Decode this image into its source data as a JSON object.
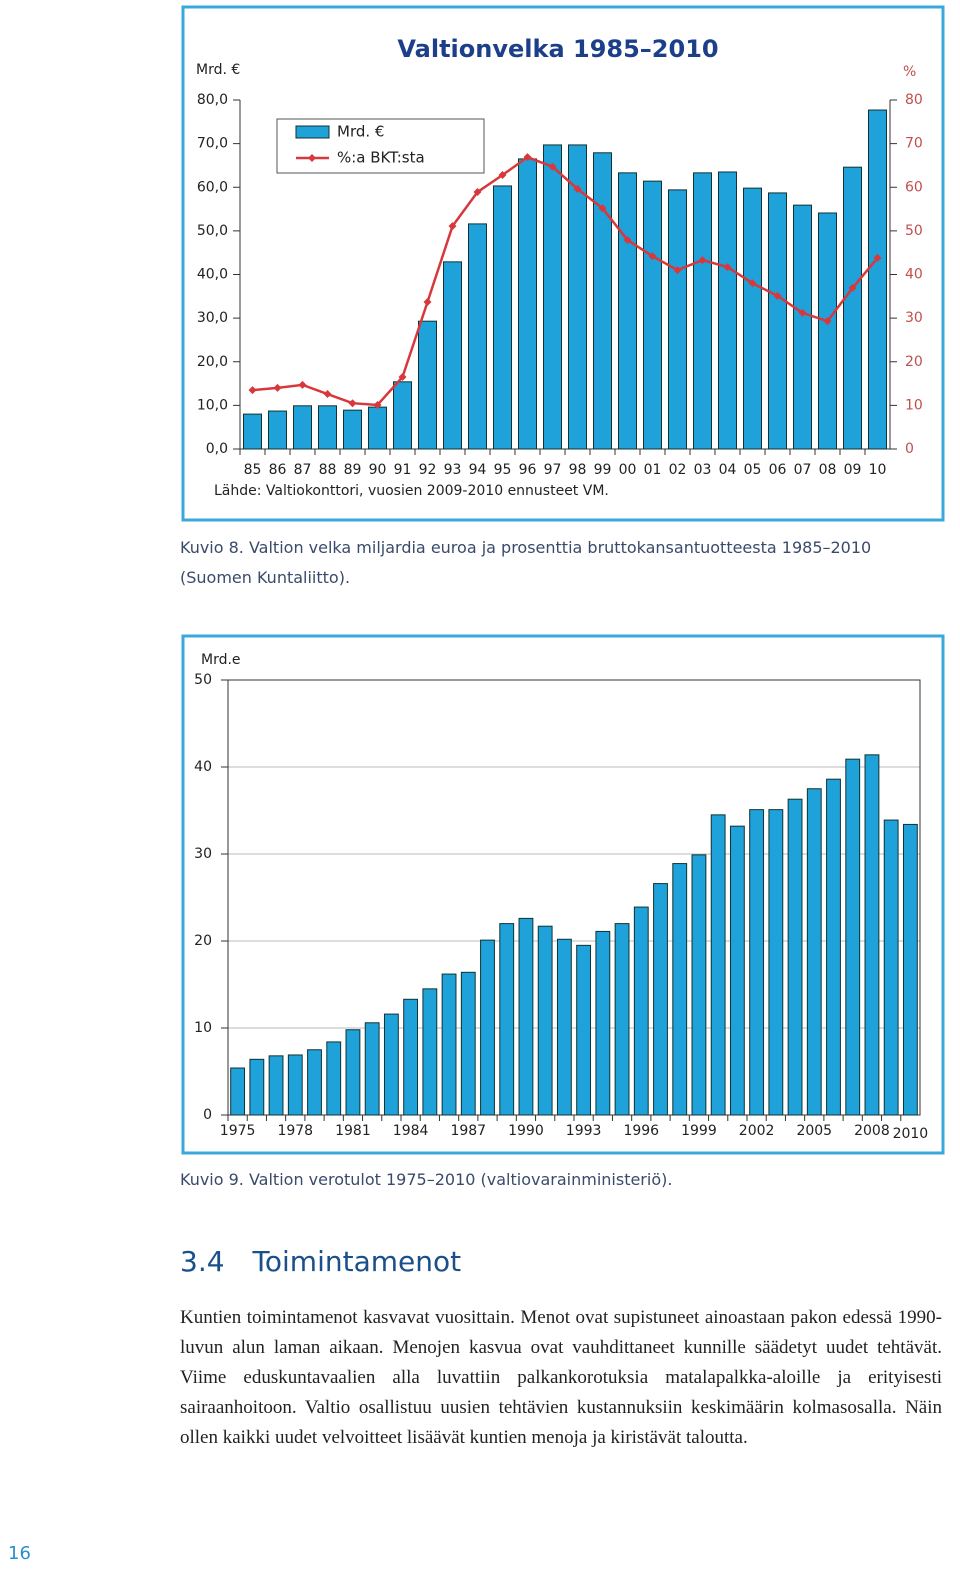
{
  "chart_data": [
    {
      "type": "bar",
      "title": "Valtionvelka 1985–2010",
      "y_label": "Mrd. €",
      "y2_label": "%",
      "source": "Lähde: Valtiokonttori, vuosien 2009-2010 ennusteet VM.",
      "categories": [
        "85",
        "86",
        "87",
        "88",
        "89",
        "90",
        "91",
        "92",
        "93",
        "94",
        "95",
        "96",
        "97",
        "98",
        "99",
        "00",
        "01",
        "02",
        "03",
        "04",
        "05",
        "06",
        "07",
        "08",
        "09",
        "10"
      ],
      "series": [
        {
          "name": "Mrd. €",
          "type": "bar",
          "axis": "y",
          "color": "#1ea2d9",
          "values": [
            8.0,
            8.7,
            9.9,
            9.9,
            8.9,
            9.6,
            15.4,
            29.3,
            42.9,
            51.6,
            60.3,
            66.5,
            69.7,
            69.7,
            67.9,
            63.3,
            61.4,
            59.4,
            63.3,
            63.5,
            59.8,
            58.7,
            55.9,
            54.1,
            64.6,
            77.7
          ]
        },
        {
          "name": "%:a BKT:sta",
          "type": "line",
          "axis": "y2",
          "color": "#d8383c",
          "values": [
            13.5,
            14.0,
            14.7,
            12.6,
            10.5,
            10.1,
            16.5,
            33.7,
            51.1,
            58.9,
            62.8,
            66.9,
            64.7,
            59.6,
            55.2,
            47.9,
            44.2,
            41.0,
            43.3,
            41.7,
            38.0,
            35.1,
            31.2,
            29.3,
            36.9,
            43.8
          ]
        }
      ],
      "ylim": [
        0,
        80
      ],
      "yticks": [
        {
          "value": 0,
          "label": "0,0"
        },
        {
          "value": 10,
          "label": "10,0"
        },
        {
          "value": 20,
          "label": "20,0"
        },
        {
          "value": 30,
          "label": "30,0"
        },
        {
          "value": 40,
          "label": "40,0"
        },
        {
          "value": 50,
          "label": "50,0"
        },
        {
          "value": 60,
          "label": "60,0"
        },
        {
          "value": 70,
          "label": "70,0"
        },
        {
          "value": 80,
          "label": "80,0"
        }
      ],
      "y2lim": [
        0,
        80
      ],
      "y2ticks": [
        0,
        10,
        20,
        30,
        40,
        50,
        60,
        70,
        80
      ],
      "legend": "upper left",
      "grid": false
    },
    {
      "type": "bar",
      "y_label": "Mrd.e",
      "color": "#1ea2d9",
      "categories": [
        "1975",
        null,
        null,
        "1978",
        null,
        null,
        "1981",
        null,
        null,
        "1984",
        null,
        null,
        "1987",
        null,
        null,
        "1990",
        null,
        null,
        "1993",
        null,
        null,
        "1996",
        null,
        null,
        "1999",
        null,
        null,
        "2002",
        null,
        null,
        "2005",
        null,
        null,
        "2008",
        null,
        "2010"
      ],
      "values": [
        5.4,
        6.4,
        6.8,
        6.9,
        7.5,
        8.4,
        9.8,
        10.6,
        11.6,
        13.3,
        14.5,
        16.2,
        16.4,
        20.1,
        22.0,
        22.6,
        21.7,
        20.2,
        19.5,
        21.1,
        22.0,
        23.9,
        26.6,
        28.9,
        29.9,
        34.5,
        33.2,
        35.1,
        35.1,
        36.3,
        37.5,
        38.6,
        40.9,
        41.4,
        33.9,
        33.4
      ],
      "ylim": [
        0,
        50
      ],
      "yticks": [
        0,
        10,
        20,
        30,
        40,
        50
      ],
      "grid": true
    }
  ],
  "captions": [
    "Kuvio 8. Valtion velka miljardia euroa ja prosenttia bruttokansantuotteesta 1985–2010 (Suomen Kuntaliitto).",
    "Kuvio 9. Valtion verotulot 1975–2010 (valtiovarainministeriö)."
  ],
  "section": {
    "number": "3.4",
    "title": "Toimintamenot",
    "text": "Kuntien toimintamenot kasvavat vuosittain. Menot ovat supistuneet ainoastaan pakon edessä 1990-luvun alun laman aikaan. Menojen kasvua ovat vauhdittaneet kunnille säädetyt uudet tehtävät. Viime eduskuntavaalien alla luvattiin palkankorotuksia matalapalkka-aloille ja erityisesti sairaanhoitoon. Valtio osallistuu uusien tehtävien kustannuksiin keskimäärin kolmasosalla. Näin ollen kaikki uudet velvoitteet lisäävät kuntien menoja ja kiristävät taloutta."
  },
  "page_number": "16"
}
